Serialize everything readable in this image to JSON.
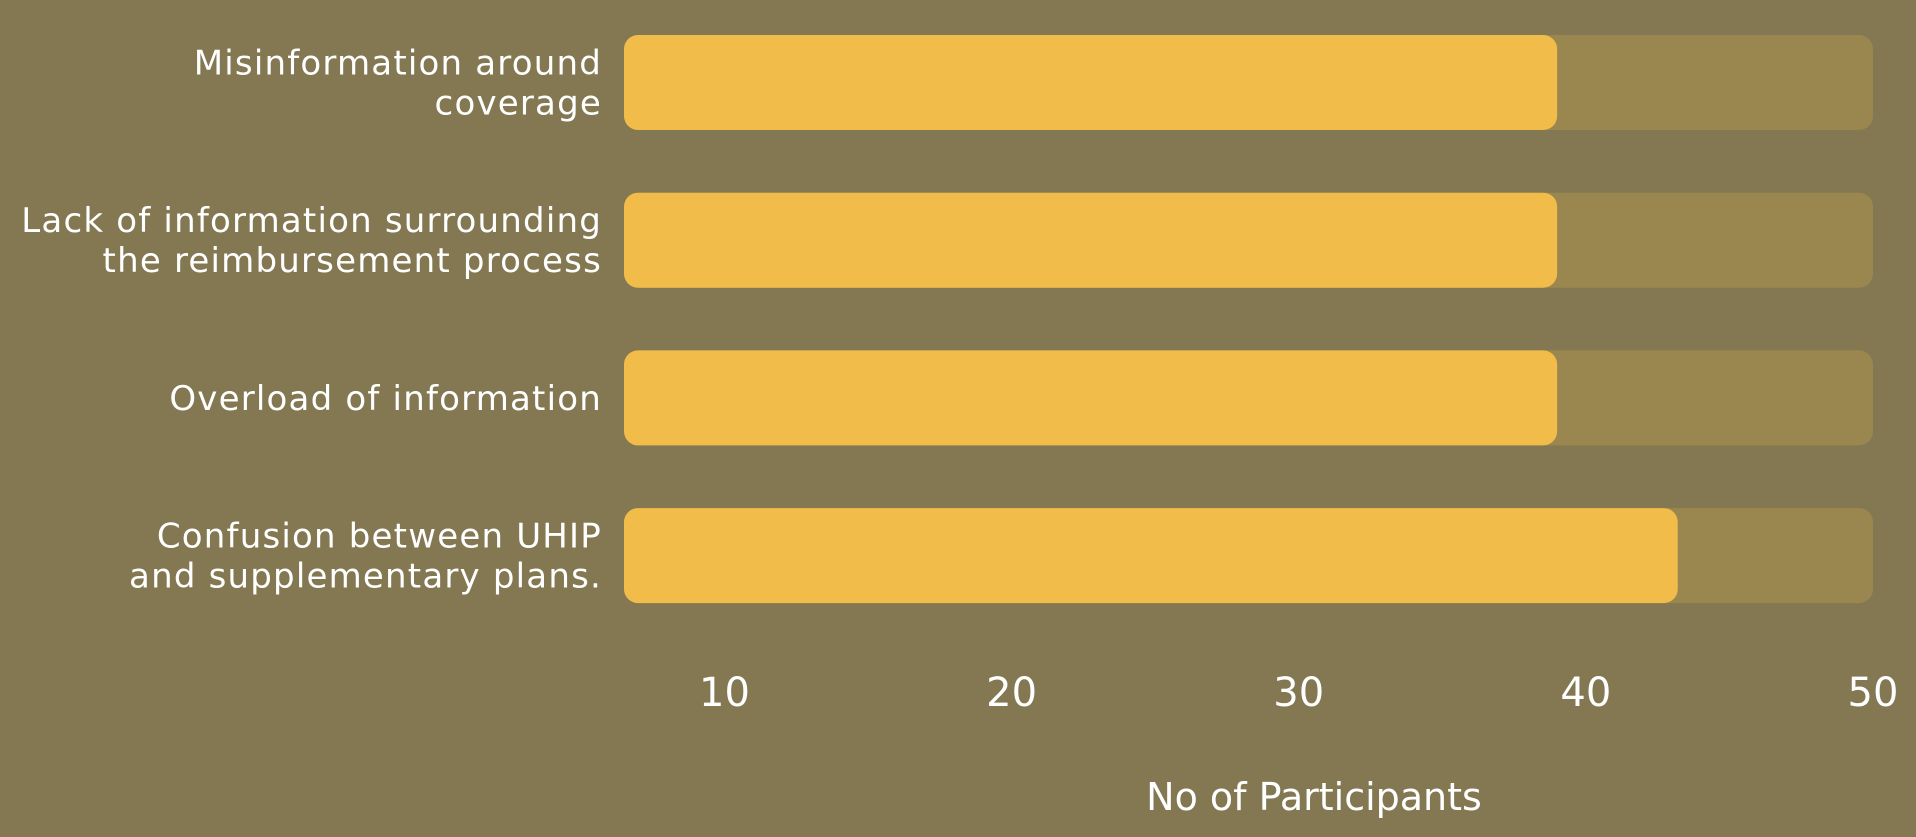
{
  "chart_data": {
    "type": "bar",
    "orientation": "horizontal",
    "categories": [
      [
        "Misinformation around",
        "coverage"
      ],
      [
        "Lack of information surrounding",
        "the reimbursement process"
      ],
      [
        "Overload of information"
      ],
      [
        "Confusion between UHIP",
        "and supplementary plans."
      ]
    ],
    "values": [
      39,
      39,
      39,
      43.2
    ],
    "xlim": [
      6.5,
      50
    ],
    "xticks": [
      "10",
      "20",
      "30",
      "40",
      "50"
    ],
    "xtick_values": [
      10,
      20,
      30,
      40,
      50
    ],
    "xlabel": "No of Participants",
    "title": "",
    "grid": false,
    "colors": {
      "background": "#837852",
      "bar": "#f2bc4a",
      "track": "#9a874f",
      "text": "#ffffff"
    }
  }
}
